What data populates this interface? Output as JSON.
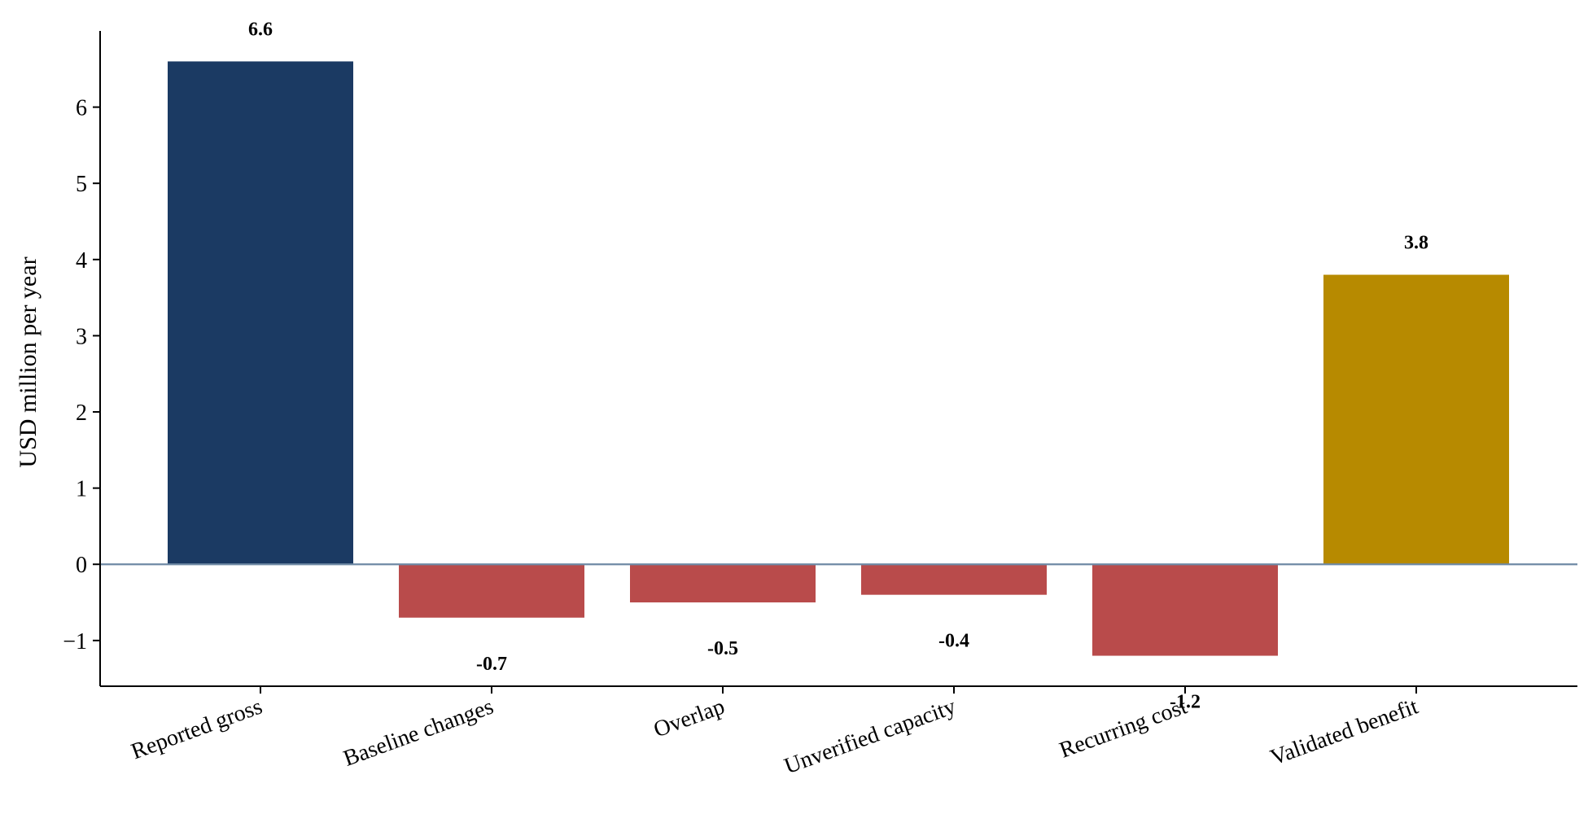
{
  "chart_data": {
    "type": "bar",
    "title": "",
    "xlabel": "",
    "ylabel": "USD million per year",
    "ylim": [
      -1.6,
      7.0
    ],
    "yticks": [
      -1,
      0,
      1,
      2,
      3,
      4,
      5,
      6
    ],
    "ytick_labels": [
      "−1",
      "0",
      "1",
      "2",
      "3",
      "4",
      "5",
      "6"
    ],
    "grid": false,
    "legend": "none",
    "categories": [
      "Reported gross",
      "Baseline changes",
      "Overlap",
      "Unverified capacity",
      "Recurring cost",
      "Validated benefit"
    ],
    "values": [
      6.6,
      -0.7,
      -0.5,
      -0.4,
      -1.2,
      3.8
    ],
    "value_labels": [
      "6.6",
      "-0.7",
      "-0.5",
      "-0.4",
      "-1.2",
      "3.8"
    ],
    "colors": [
      "#1b3a63",
      "#b94b4b",
      "#b94b4b",
      "#b94b4b",
      "#b94b4b",
      "#b78a00"
    ],
    "zero_line_color": "#6f8aa5"
  }
}
